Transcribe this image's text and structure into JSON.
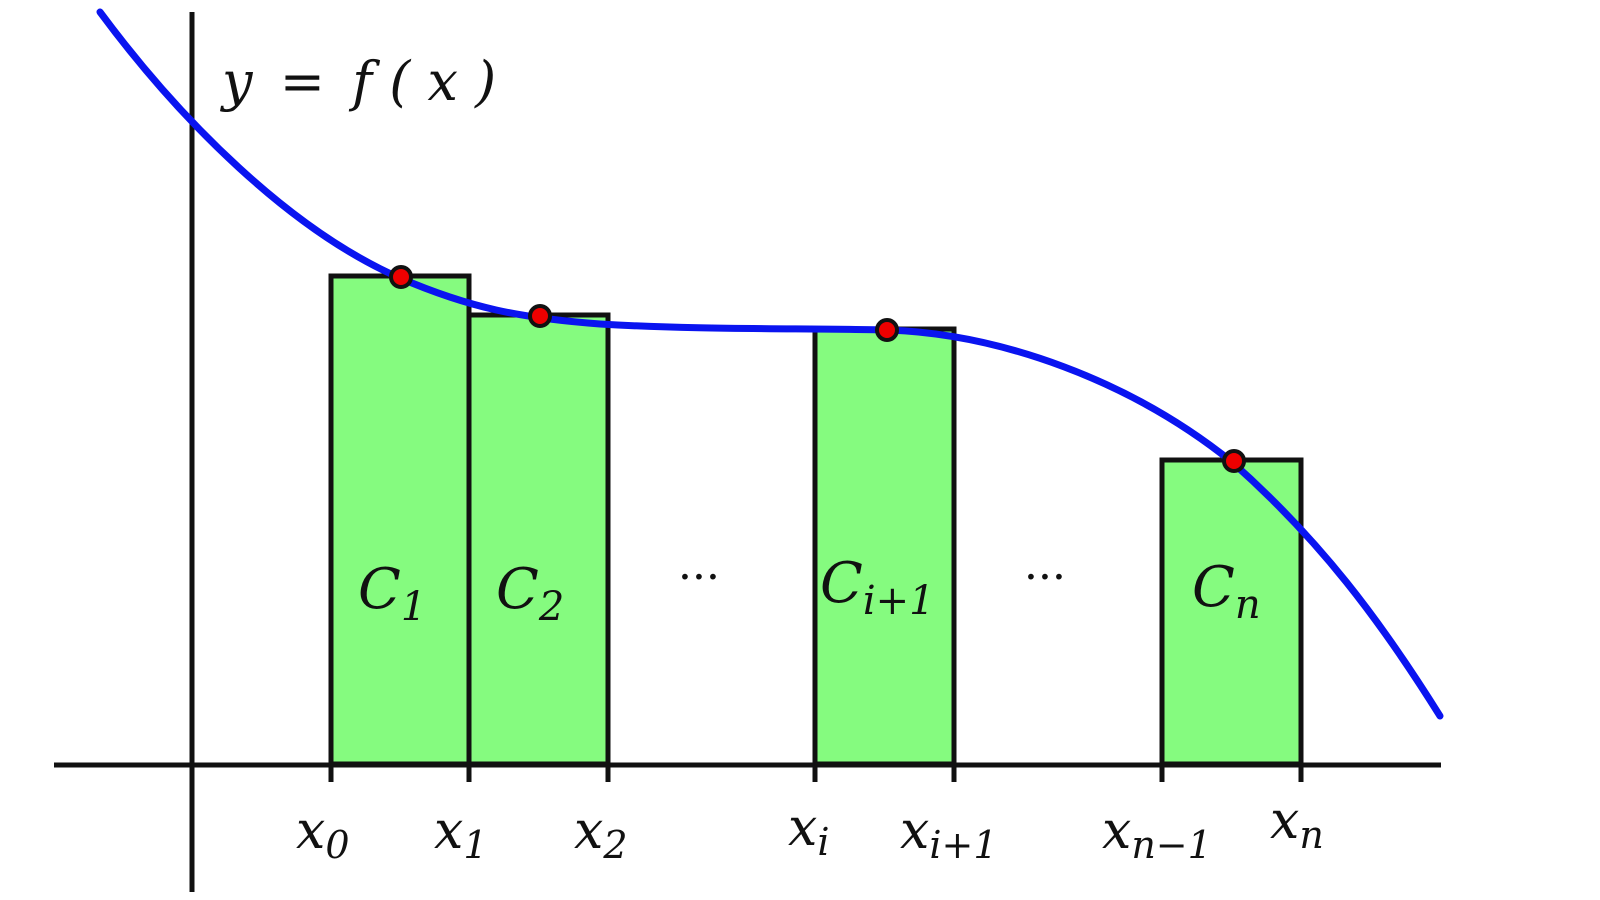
{
  "curve_label": {
    "name": "y",
    "eq": "=",
    "fn": "f",
    "open": "(",
    "var": "x",
    "close": ")"
  },
  "ellipsis": "···",
  "colors": {
    "curve": "#0a14f0",
    "rect_fill": "#85fb7f",
    "rect_stroke": "#111111",
    "point_fill": "#ee0000",
    "axis": "#111111"
  },
  "ticks": [
    {
      "base": "x",
      "sub": "0"
    },
    {
      "base": "x",
      "sub": "1"
    },
    {
      "base": "x",
      "sub": "2"
    },
    {
      "base": "x",
      "sub": "i"
    },
    {
      "base": "x",
      "sub": "i+1"
    },
    {
      "base": "x",
      "sub": "n−1"
    },
    {
      "base": "x",
      "sub": "n"
    }
  ],
  "rectangles": [
    {
      "base": "C",
      "sub": "1"
    },
    {
      "base": "C",
      "sub": "2"
    },
    {
      "base": "C",
      "sub": "i+1"
    },
    {
      "base": "C",
      "sub": "n"
    }
  ]
}
